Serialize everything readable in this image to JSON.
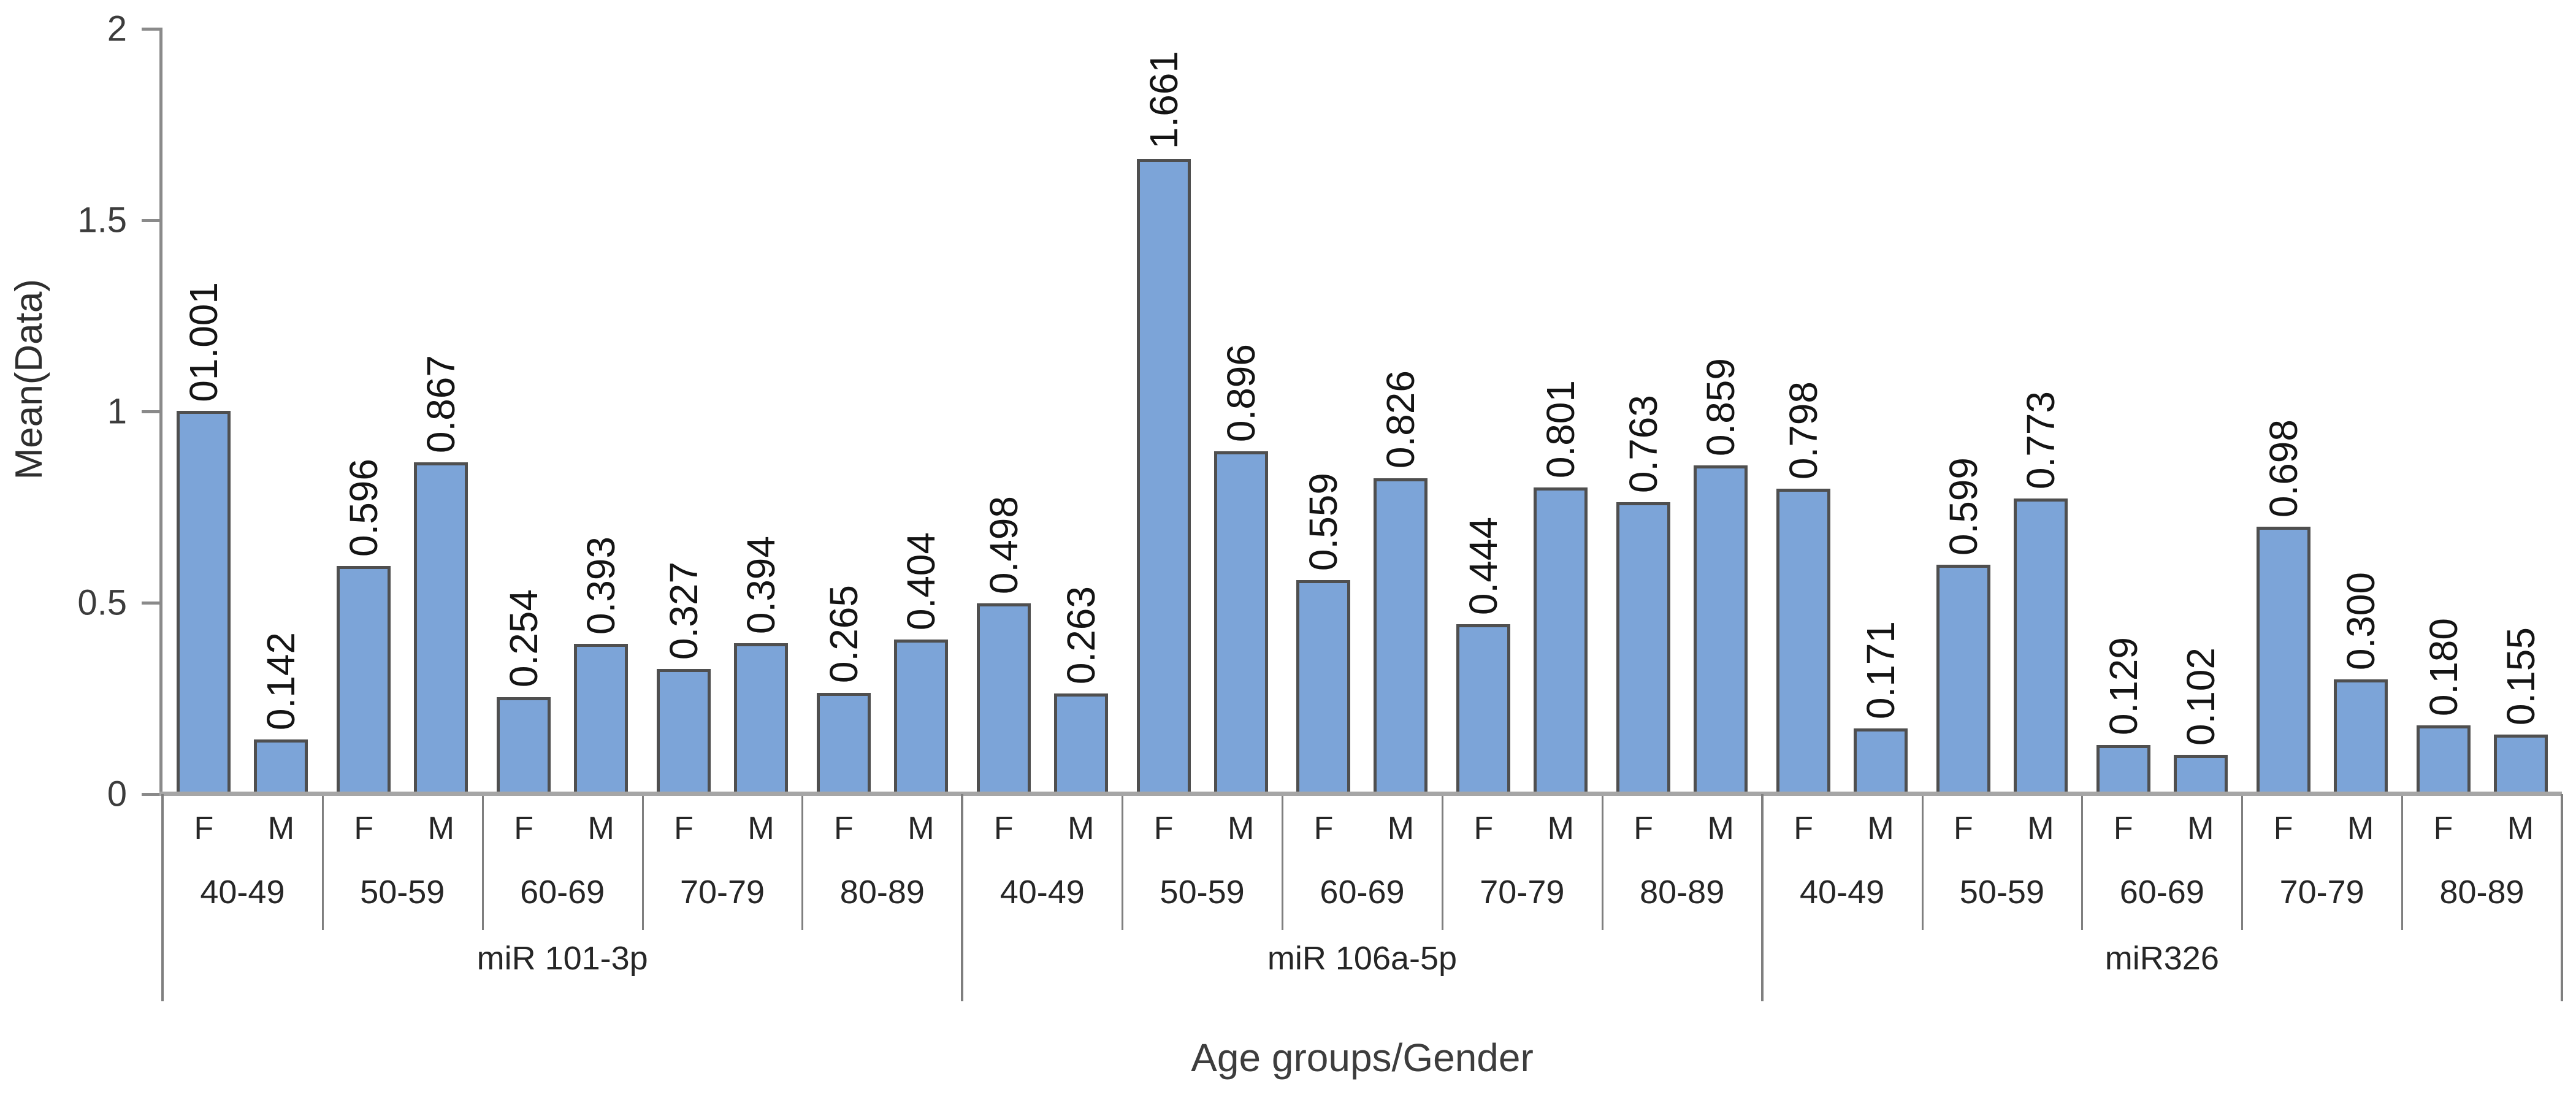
{
  "chart_data": {
    "type": "bar",
    "title": "",
    "ylabel": "Mean(Data)",
    "xlabel": "Age groups/Gender",
    "ylim": [
      0,
      2
    ],
    "grid": false,
    "legend": "none",
    "yticks": [
      {
        "value": 2,
        "label": "2"
      },
      {
        "value": 1.5,
        "label": "1.5"
      },
      {
        "value": 1,
        "label": "1"
      },
      {
        "value": 0.5,
        "label": "0.5"
      },
      {
        "value": 0,
        "label": "0"
      }
    ],
    "genders": [
      "F",
      "M"
    ],
    "age_groups": [
      "40-49",
      "50-59",
      "60-69",
      "70-79",
      "80-89"
    ],
    "colors": {
      "bar_fill": "#7ca4d8",
      "bar_border": "#4f4f4f",
      "axis_line": "#8a8a8a",
      "baseline": "#a6a6a6",
      "divider": "#7f7f7f",
      "text": "#262626"
    },
    "groups": [
      {
        "label": "miR 101-3p",
        "categories": [
          {
            "age": "40-49",
            "bars": [
              {
                "gender": "F",
                "value": 1.001,
                "label": "01.001"
              },
              {
                "gender": "M",
                "value": 0.142,
                "label": "0.142"
              }
            ]
          },
          {
            "age": "50-59",
            "bars": [
              {
                "gender": "F",
                "value": 0.596,
                "label": "0.596"
              },
              {
                "gender": "M",
                "value": 0.867,
                "label": "0.867"
              }
            ]
          },
          {
            "age": "60-69",
            "bars": [
              {
                "gender": "F",
                "value": 0.254,
                "label": "0.254"
              },
              {
                "gender": "M",
                "value": 0.393,
                "label": "0.393"
              }
            ]
          },
          {
            "age": "70-79",
            "bars": [
              {
                "gender": "F",
                "value": 0.327,
                "label": "0.327"
              },
              {
                "gender": "M",
                "value": 0.394,
                "label": "0.394"
              }
            ]
          },
          {
            "age": "80-89",
            "bars": [
              {
                "gender": "F",
                "value": 0.265,
                "label": "0.265"
              },
              {
                "gender": "M",
                "value": 0.404,
                "label": "0.404"
              }
            ]
          }
        ]
      },
      {
        "label": "miR 106a-5p",
        "categories": [
          {
            "age": "40-49",
            "bars": [
              {
                "gender": "F",
                "value": 0.498,
                "label": "0.498"
              },
              {
                "gender": "M",
                "value": 0.263,
                "label": "0.263"
              }
            ]
          },
          {
            "age": "50-59",
            "bars": [
              {
                "gender": "F",
                "value": 1.661,
                "label": "1.661"
              },
              {
                "gender": "M",
                "value": 0.896,
                "label": "0.896"
              }
            ]
          },
          {
            "age": "60-69",
            "bars": [
              {
                "gender": "F",
                "value": 0.559,
                "label": "0.559"
              },
              {
                "gender": "M",
                "value": 0.826,
                "label": "0.826"
              }
            ]
          },
          {
            "age": "70-79",
            "bars": [
              {
                "gender": "F",
                "value": 0.444,
                "label": "0.444"
              },
              {
                "gender": "M",
                "value": 0.801,
                "label": "0.801"
              }
            ]
          },
          {
            "age": "80-89",
            "bars": [
              {
                "gender": "F",
                "value": 0.763,
                "label": "0.763"
              },
              {
                "gender": "M",
                "value": 0.859,
                "label": "0.859"
              }
            ]
          }
        ]
      },
      {
        "label": "miR326",
        "categories": [
          {
            "age": "40-49",
            "bars": [
              {
                "gender": "F",
                "value": 0.798,
                "label": "0.798"
              },
              {
                "gender": "M",
                "value": 0.171,
                "label": "0.171"
              }
            ]
          },
          {
            "age": "50-59",
            "bars": [
              {
                "gender": "F",
                "value": 0.599,
                "label": "0.599"
              },
              {
                "gender": "M",
                "value": 0.773,
                "label": "0.773"
              }
            ]
          },
          {
            "age": "60-69",
            "bars": [
              {
                "gender": "F",
                "value": 0.129,
                "label": "0.129"
              },
              {
                "gender": "M",
                "value": 0.102,
                "label": "0.102"
              }
            ]
          },
          {
            "age": "70-79",
            "bars": [
              {
                "gender": "F",
                "value": 0.698,
                "label": "0.698"
              },
              {
                "gender": "M",
                "value": 0.3,
                "label": "0.300"
              }
            ]
          },
          {
            "age": "80-89",
            "bars": [
              {
                "gender": "F",
                "value": 0.18,
                "label": "0.180"
              },
              {
                "gender": "M",
                "value": 0.155,
                "label": "0.155"
              }
            ]
          }
        ]
      }
    ]
  }
}
